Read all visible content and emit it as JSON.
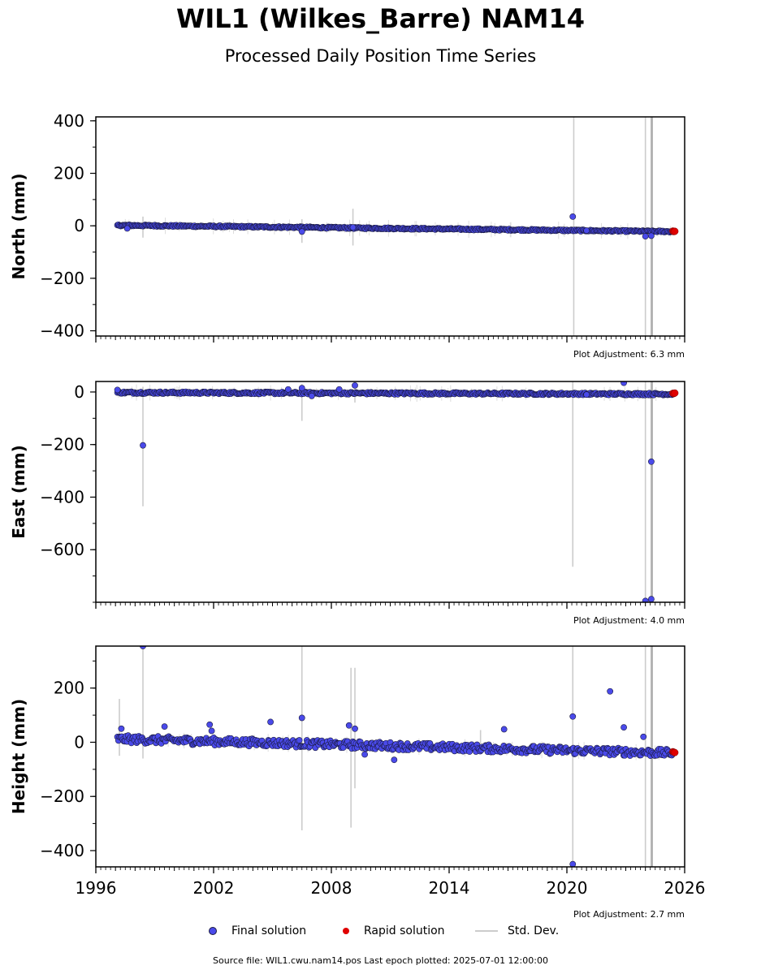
{
  "title": "WIL1 (Wilkes_Barre) NAM14",
  "subtitle": "Processed Daily Position Time Series",
  "legend": {
    "final": "Final solution",
    "rapid": "Rapid solution",
    "std": "Std. Dev."
  },
  "footer": "Source file: WIL1.cwu.nam14.pos  Last epoch plotted: 2025-07-01 12:00:00",
  "colors": {
    "final": "#4a4aea",
    "final_edge": "#1a1a40",
    "rapid": "#e00000",
    "std": "#cccccc"
  },
  "chart_data": [
    {
      "type": "scatter",
      "ylabel": "North (mm)",
      "ylim": [
        -420,
        415
      ],
      "yticks": [
        400,
        200,
        0,
        -200,
        -400
      ],
      "xlim": [
        1996,
        2026
      ],
      "xticks": [
        1996,
        2002,
        2008,
        2014,
        2020,
        2026
      ],
      "adjustment": "Plot Adjustment: 6.3 mm",
      "trend": {
        "x0": 1997.1,
        "y0": 2,
        "x1": 2025.4,
        "y1": -22,
        "spread": 3
      },
      "outliers": [
        [
          1997.6,
          -10
        ],
        [
          2006.5,
          -22
        ],
        [
          2009.1,
          -6
        ],
        [
          2020.3,
          35
        ],
        [
          2021.0,
          -18
        ],
        [
          2024.0,
          -40
        ],
        [
          2024.3,
          -38
        ]
      ],
      "std_bars": [
        [
          1998.4,
          -45,
          35
        ],
        [
          2006.5,
          -65,
          25
        ],
        [
          2009.1,
          -75,
          65
        ],
        [
          2020.35,
          -420,
          415
        ],
        [
          2024.0,
          -420,
          415
        ],
        [
          2024.3,
          -420,
          415
        ],
        [
          2024.35,
          -420,
          415
        ]
      ],
      "rapid": [
        [
          2025.4,
          -20
        ],
        [
          2025.45,
          -22
        ],
        [
          2025.5,
          -21
        ]
      ]
    },
    {
      "type": "scatter",
      "ylabel": "East (mm)",
      "ylim": [
        -800,
        40
      ],
      "yticks": [
        0,
        -200,
        -400,
        -600
      ],
      "xlim": [
        1996,
        2026
      ],
      "xticks": [
        1996,
        2002,
        2008,
        2014,
        2020,
        2026
      ],
      "adjustment": "Plot Adjustment: 4.0 mm",
      "trend": {
        "x0": 1997.1,
        "y0": -2,
        "x1": 2025.4,
        "y1": -8,
        "spread": 4
      },
      "outliers": [
        [
          1997.1,
          8
        ],
        [
          1998.4,
          -203
        ],
        [
          2005.8,
          10
        ],
        [
          2006.5,
          15
        ],
        [
          2007.0,
          -15
        ],
        [
          2008.4,
          10
        ],
        [
          2009.2,
          25
        ],
        [
          2021.0,
          -10
        ],
        [
          2022.9,
          35
        ],
        [
          2024.0,
          -795
        ],
        [
          2024.3,
          -265
        ],
        [
          2024.3,
          -788
        ]
      ],
      "std_bars": [
        [
          1998.4,
          -435,
          20
        ],
        [
          2006.5,
          -110,
          30
        ],
        [
          2009.2,
          -40,
          40
        ],
        [
          2020.3,
          -665,
          40
        ],
        [
          2024.0,
          -800,
          40
        ],
        [
          2024.3,
          -800,
          40
        ],
        [
          2024.35,
          -800,
          40
        ]
      ],
      "rapid": [
        [
          2025.4,
          -5
        ],
        [
          2025.45,
          -6
        ],
        [
          2025.5,
          -4
        ]
      ]
    },
    {
      "type": "scatter",
      "ylabel": "Height (mm)",
      "ylim": [
        -460,
        355
      ],
      "yticks": [
        200,
        0,
        -200,
        -400
      ],
      "xlim": [
        1996,
        2026
      ],
      "xticks": [
        1996,
        2002,
        2008,
        2014,
        2020,
        2026
      ],
      "xticklabels": [
        "1996",
        "2002",
        "2008",
        "2014",
        "2020",
        "2026"
      ],
      "adjustment": "Plot Adjustment: 2.7 mm",
      "trend": {
        "x0": 1997.1,
        "y0": 12,
        "x1": 2025.4,
        "y1": -40,
        "spread": 14
      },
      "outliers": [
        [
          1997.3,
          50
        ],
        [
          1998.4,
          355
        ],
        [
          1999.5,
          58
        ],
        [
          2001.8,
          65
        ],
        [
          2001.9,
          42
        ],
        [
          2004.9,
          75
        ],
        [
          2006.5,
          90
        ],
        [
          2008.9,
          62
        ],
        [
          2009.2,
          50
        ],
        [
          2009.7,
          -45
        ],
        [
          2011.2,
          -65
        ],
        [
          2016.8,
          48
        ],
        [
          2020.3,
          95
        ],
        [
          2020.3,
          -450
        ],
        [
          2022.2,
          188
        ],
        [
          2022.9,
          55
        ],
        [
          2023.9,
          20
        ]
      ],
      "std_bars": [
        [
          1997.2,
          -50,
          160
        ],
        [
          1998.4,
          -60,
          355
        ],
        [
          2006.5,
          -325,
          355
        ],
        [
          2009.0,
          -315,
          275
        ],
        [
          2009.2,
          -170,
          275
        ],
        [
          2015.6,
          -30,
          45
        ],
        [
          2020.3,
          -460,
          355
        ],
        [
          2024.0,
          -460,
          355
        ],
        [
          2024.3,
          -460,
          355
        ],
        [
          2024.35,
          -460,
          355
        ]
      ],
      "rapid": [
        [
          2025.4,
          -35
        ],
        [
          2025.45,
          -37
        ],
        [
          2025.5,
          -38
        ]
      ]
    }
  ]
}
